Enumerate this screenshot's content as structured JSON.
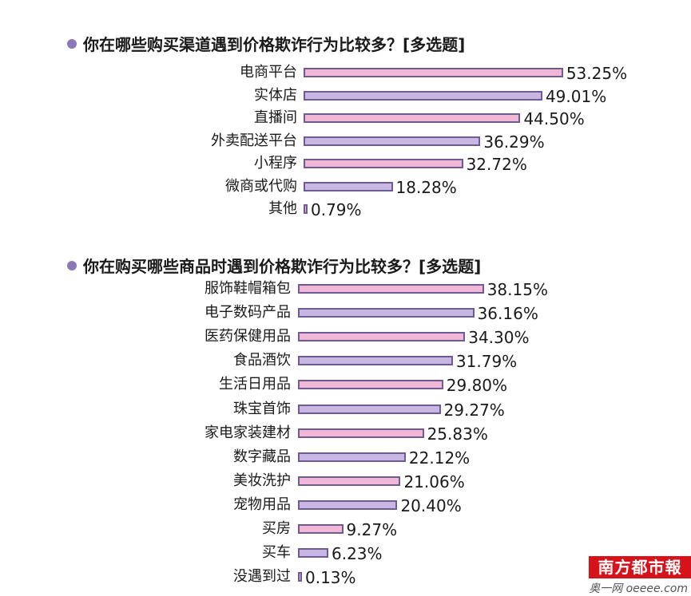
{
  "chart_data": [
    {
      "type": "bar",
      "orientation": "horizontal",
      "title": "你在哪些购买渠道遇到价格欺诈行为比较多？[多选题]",
      "categories": [
        "电商平台",
        "实体店",
        "直播间",
        "外卖配送平台",
        "小程序",
        "微商或代购",
        "其他"
      ],
      "values": [
        53.25,
        49.01,
        44.5,
        36.29,
        32.72,
        18.28,
        0.79
      ],
      "value_labels": [
        "53.25%",
        "49.01%",
        "44.50%",
        "36.29%",
        "32.72%",
        "18.28%",
        "0.79%"
      ],
      "grid": false,
      "legend": "none"
    },
    {
      "type": "bar",
      "orientation": "horizontal",
      "title": "你在购买哪些商品时遇到价格欺诈行为比较多？[多选题]",
      "categories": [
        "服饰鞋帽箱包",
        "电子数码产品",
        "医药保健用品",
        "食品酒饮",
        "生活日用品",
        "珠宝首饰",
        "家电家装建材",
        "数字藏品",
        "美妆洗护",
        "宠物用品",
        "买房",
        "买车",
        "没遇到过"
      ],
      "values": [
        38.15,
        36.16,
        34.3,
        31.79,
        29.8,
        29.27,
        25.83,
        22.12,
        21.06,
        20.4,
        9.27,
        6.23,
        0.13
      ],
      "value_labels": [
        "38.15%",
        "36.16%",
        "34.30%",
        "31.79%",
        "29.80%",
        "29.27%",
        "25.83%",
        "22.12%",
        "21.06%",
        "20.40%",
        "9.27%",
        "6.23%",
        "0.13%"
      ],
      "grid": false,
      "legend": "none"
    }
  ],
  "colors": {
    "bar_pink": "#f1b8d6",
    "bar_lavender": "#c7b7e2",
    "bar_border": "#6e5a94",
    "bullet": "#8a78b8",
    "watermark_red": "#d6131b"
  },
  "watermark": {
    "logo_text": "南方都市報",
    "site_text": "奥一网 oeeee.com"
  }
}
